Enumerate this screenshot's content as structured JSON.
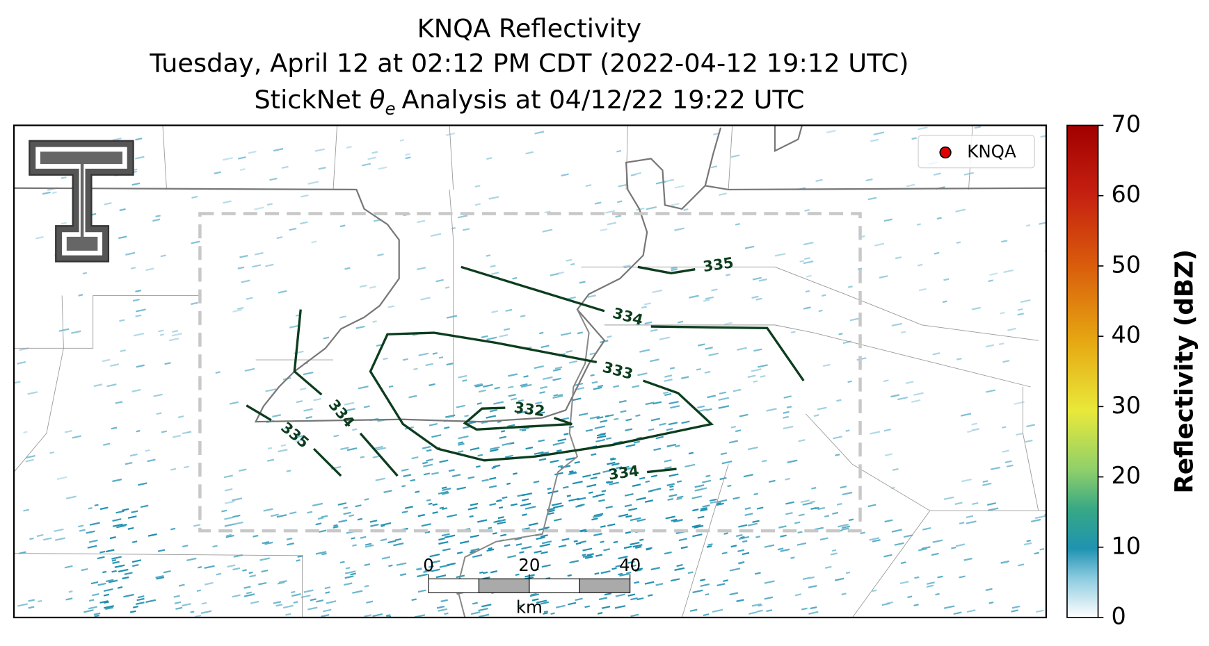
{
  "title": {
    "line1": "KNQA Reflectivity",
    "line2": "Tuesday, April 12 at 02:12 PM CDT (2022-04-12 19:12 UTC)",
    "line3": {
      "prefix": "StickNet",
      "symbol": "θ",
      "subscript": "e",
      "suffix": "Analysis at 04/12/22 19:22 UTC"
    }
  },
  "legend": {
    "label": "KNQA",
    "color": "#e00000"
  },
  "colorbar": {
    "label": "Reflectivity (dBZ)",
    "clim": [
      0,
      70
    ],
    "ticks": [
      0,
      10,
      20,
      30,
      40,
      50,
      60,
      70
    ]
  },
  "contour_labels": [
    335,
    334,
    333,
    332,
    334,
    335,
    334
  ],
  "scalebar": {
    "range": [
      0,
      40
    ],
    "ticks": [
      0,
      20,
      40
    ],
    "unit": "km"
  }
}
